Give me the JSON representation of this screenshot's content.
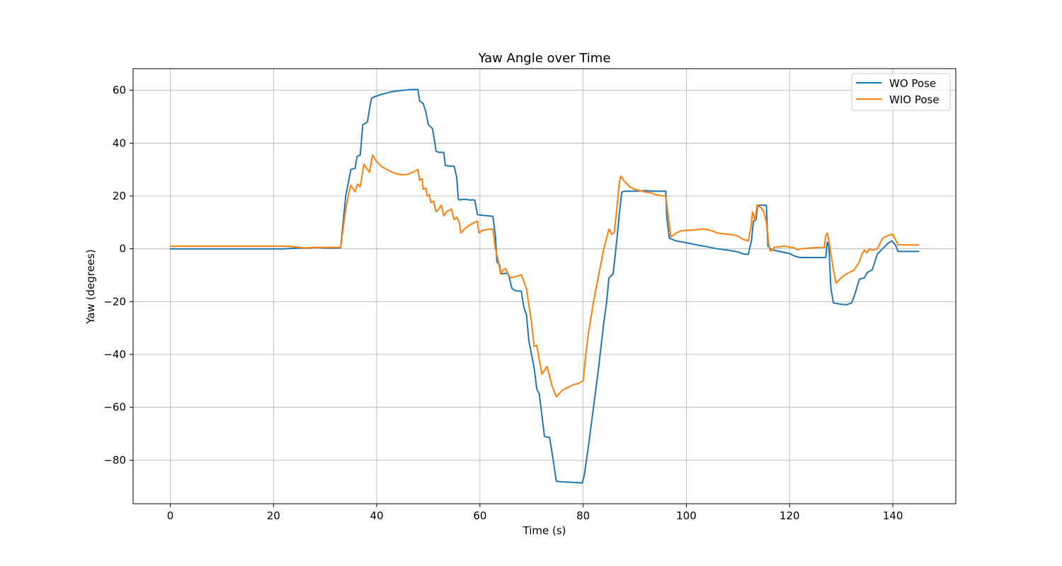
{
  "chart_data": {
    "type": "line",
    "title": "Yaw Angle over Time",
    "xlabel": "Time (s)",
    "ylabel": "Yaw (degrees)",
    "xlim": [
      -7.2,
      152.2
    ],
    "ylim": [
      -96.5,
      68.2
    ],
    "xticks": [
      0,
      20,
      40,
      60,
      80,
      100,
      120,
      140
    ],
    "xtick_labels": [
      "0",
      "20",
      "40",
      "60",
      "80",
      "100",
      "120",
      "140"
    ],
    "yticks": [
      -80,
      -60,
      -40,
      -20,
      0,
      20,
      40,
      60
    ],
    "ytick_labels": [
      "−80",
      "−60",
      "−40",
      "−20",
      "0",
      "20",
      "40",
      "60"
    ],
    "grid": true,
    "legend_position": "top-right",
    "series": [
      {
        "name": "WO Pose",
        "color": "#1f77b4",
        "points": [
          [
            0,
            0
          ],
          [
            10,
            0
          ],
          [
            22,
            0
          ],
          [
            25,
            0.3
          ],
          [
            27,
            0.3
          ],
          [
            28,
            0.5
          ],
          [
            30,
            0.3
          ],
          [
            33,
            0.3
          ],
          [
            34,
            20
          ],
          [
            35,
            30
          ],
          [
            35.8,
            30.5
          ],
          [
            36.2,
            35
          ],
          [
            36.8,
            35.5
          ],
          [
            37.3,
            47
          ],
          [
            38.2,
            48
          ],
          [
            38.6,
            53
          ],
          [
            39,
            57
          ],
          [
            39.5,
            57.5
          ],
          [
            41,
            58.5
          ],
          [
            43,
            59.5
          ],
          [
            45,
            60
          ],
          [
            47,
            60.3
          ],
          [
            48,
            60.3
          ],
          [
            48.3,
            56
          ],
          [
            49,
            55
          ],
          [
            49.5,
            52
          ],
          [
            50,
            47
          ],
          [
            50.8,
            45.5
          ],
          [
            51.2,
            41
          ],
          [
            51.5,
            37
          ],
          [
            52,
            36.5
          ],
          [
            53,
            36.5
          ],
          [
            53.3,
            31.5
          ],
          [
            54,
            31.3
          ],
          [
            55,
            31.3
          ],
          [
            55.5,
            27
          ],
          [
            55.8,
            19
          ],
          [
            56,
            18.5
          ],
          [
            57,
            18.8
          ],
          [
            58,
            18.5
          ],
          [
            59,
            18.5
          ],
          [
            59.5,
            13
          ],
          [
            60,
            12.8
          ],
          [
            61.5,
            12.5
          ],
          [
            62.5,
            12.3
          ],
          [
            63,
            5
          ],
          [
            63.3,
            -5
          ],
          [
            63.8,
            -6
          ],
          [
            64,
            -9.5
          ],
          [
            65,
            -9.3
          ],
          [
            65.5,
            -9.5
          ],
          [
            66.2,
            -15
          ],
          [
            67,
            -16
          ],
          [
            68,
            -16
          ],
          [
            68.5,
            -22
          ],
          [
            69,
            -25
          ],
          [
            69.5,
            -35
          ],
          [
            70.5,
            -45
          ],
          [
            71,
            -53
          ],
          [
            71.5,
            -55
          ],
          [
            72,
            -63
          ],
          [
            72.5,
            -71
          ],
          [
            73.5,
            -71.5
          ],
          [
            74.2,
            -80
          ],
          [
            74.8,
            -88
          ],
          [
            76,
            -88.2
          ],
          [
            78,
            -88.4
          ],
          [
            79,
            -88.5
          ],
          [
            79.8,
            -88.7
          ],
          [
            80.2,
            -86
          ],
          [
            81,
            -75
          ],
          [
            82,
            -60
          ],
          [
            83,
            -45
          ],
          [
            84,
            -28
          ],
          [
            84.5,
            -21
          ],
          [
            85,
            -11
          ],
          [
            85.8,
            -9.5
          ],
          [
            86.5,
            3
          ],
          [
            87,
            13
          ],
          [
            87.5,
            21.5
          ],
          [
            88,
            21.8
          ],
          [
            90,
            21.8
          ],
          [
            92,
            22
          ],
          [
            94,
            21.8
          ],
          [
            96,
            21.8
          ],
          [
            96.2,
            12
          ],
          [
            96.7,
            4
          ],
          [
            98,
            3
          ],
          [
            100,
            2.3
          ],
          [
            102,
            1.5
          ],
          [
            104,
            0.8
          ],
          [
            106,
            0
          ],
          [
            108,
            -0.5
          ],
          [
            110,
            -1.2
          ],
          [
            111,
            -2
          ],
          [
            112,
            -2.1
          ],
          [
            112.6,
            3
          ],
          [
            113,
            10.5
          ],
          [
            113.5,
            11
          ],
          [
            113.8,
            16.5
          ],
          [
            115,
            16.5
          ],
          [
            115.5,
            16.5
          ],
          [
            115.8,
            1
          ],
          [
            116.5,
            -0.3
          ],
          [
            118,
            -1
          ],
          [
            120,
            -1.8
          ],
          [
            121,
            -2.8
          ],
          [
            122,
            -3.3
          ],
          [
            124,
            -3.3
          ],
          [
            127,
            -3.3
          ],
          [
            127.3,
            2.5
          ],
          [
            127.6,
            1
          ],
          [
            128,
            -15
          ],
          [
            128.5,
            -20.5
          ],
          [
            130,
            -21
          ],
          [
            131,
            -21.2
          ],
          [
            132,
            -20.5
          ],
          [
            132.5,
            -18
          ],
          [
            133,
            -15
          ],
          [
            133.5,
            -11.5
          ],
          [
            134.5,
            -11
          ],
          [
            135,
            -9
          ],
          [
            136,
            -8
          ],
          [
            136.5,
            -5
          ],
          [
            137,
            -2
          ],
          [
            138,
            0
          ],
          [
            139,
            2
          ],
          [
            139.8,
            3
          ],
          [
            140.5,
            1.5
          ],
          [
            141,
            -1
          ],
          [
            143,
            -1
          ],
          [
            145,
            -1
          ]
        ]
      },
      {
        "name": "WIO Pose",
        "color": "#ff7f0e",
        "points": [
          [
            0,
            1
          ],
          [
            10,
            1
          ],
          [
            20,
            1
          ],
          [
            22,
            1
          ],
          [
            24,
            0.8
          ],
          [
            26,
            0.3
          ],
          [
            28,
            0.5
          ],
          [
            30,
            0.5
          ],
          [
            33,
            0.5
          ],
          [
            34,
            15
          ],
          [
            34.7,
            22
          ],
          [
            35,
            24
          ],
          [
            35.8,
            21.5
          ],
          [
            36.3,
            24.5
          ],
          [
            36.8,
            23.5
          ],
          [
            37.5,
            32
          ],
          [
            38,
            30.5
          ],
          [
            38.6,
            29
          ],
          [
            39.2,
            35.5
          ],
          [
            40,
            33
          ],
          [
            41,
            31
          ],
          [
            42,
            30
          ],
          [
            43,
            29
          ],
          [
            44,
            28.3
          ],
          [
            45,
            28
          ],
          [
            46,
            28.2
          ],
          [
            47,
            29
          ],
          [
            48,
            30
          ],
          [
            48.3,
            26
          ],
          [
            48.8,
            26.5
          ],
          [
            49,
            22.5
          ],
          [
            49.5,
            23
          ],
          [
            49.8,
            20
          ],
          [
            50.2,
            20.5
          ],
          [
            50.5,
            17.5
          ],
          [
            51,
            18
          ],
          [
            51.5,
            14
          ],
          [
            52,
            15
          ],
          [
            52.5,
            16.5
          ],
          [
            53,
            12.5
          ],
          [
            53.5,
            14
          ],
          [
            54.5,
            15
          ],
          [
            55,
            11
          ],
          [
            55.5,
            12
          ],
          [
            56,
            10
          ],
          [
            56.3,
            6
          ],
          [
            57,
            7.5
          ],
          [
            58,
            9
          ],
          [
            59,
            10
          ],
          [
            59.5,
            10.5
          ],
          [
            59.8,
            6
          ],
          [
            60.5,
            7
          ],
          [
            62,
            7.5
          ],
          [
            62.5,
            7.5
          ],
          [
            63,
            0
          ],
          [
            63.5,
            -4
          ],
          [
            64,
            -9.5
          ],
          [
            64.5,
            -8
          ],
          [
            65,
            -7.5
          ],
          [
            65.5,
            -10
          ],
          [
            66,
            -11
          ],
          [
            67,
            -10.5
          ],
          [
            68,
            -9.8
          ],
          [
            69,
            -15
          ],
          [
            70,
            -28
          ],
          [
            70.5,
            -37
          ],
          [
            71,
            -36.5
          ],
          [
            71.5,
            -42
          ],
          [
            72,
            -47.5
          ],
          [
            72.5,
            -46
          ],
          [
            73,
            -44.5
          ],
          [
            74,
            -52
          ],
          [
            74.8,
            -56
          ],
          [
            75.5,
            -54.5
          ],
          [
            76,
            -53.5
          ],
          [
            77,
            -52.5
          ],
          [
            78,
            -51.5
          ],
          [
            79,
            -51
          ],
          [
            80,
            -50
          ],
          [
            80.5,
            -40
          ],
          [
            81,
            -32
          ],
          [
            82,
            -20
          ],
          [
            83,
            -10
          ],
          [
            84,
            0
          ],
          [
            85,
            7.5
          ],
          [
            85.5,
            5.5
          ],
          [
            86,
            6
          ],
          [
            86.5,
            15
          ],
          [
            87,
            25
          ],
          [
            87.3,
            27.5
          ],
          [
            88,
            25.5
          ],
          [
            89,
            23.5
          ],
          [
            90,
            22.5
          ],
          [
            91,
            22
          ],
          [
            92,
            21.5
          ],
          [
            93,
            21.3
          ],
          [
            94,
            20.5
          ],
          [
            96,
            19.8
          ],
          [
            96.5,
            12
          ],
          [
            97,
            4.5
          ],
          [
            98,
            6
          ],
          [
            99,
            6.8
          ],
          [
            100,
            7
          ],
          [
            102,
            7.2
          ],
          [
            103,
            7.5
          ],
          [
            104,
            7.3
          ],
          [
            105,
            6.8
          ],
          [
            106,
            6
          ],
          [
            108,
            5.5
          ],
          [
            109,
            5.3
          ],
          [
            110,
            4.8
          ],
          [
            111,
            3.5
          ],
          [
            112,
            3
          ],
          [
            112.5,
            8
          ],
          [
            112.8,
            14
          ],
          [
            113,
            13
          ],
          [
            113.3,
            10.5
          ],
          [
            113.7,
            16.5
          ],
          [
            114.5,
            15.5
          ],
          [
            115,
            14
          ],
          [
            115.5,
            10
          ],
          [
            116,
            0.8
          ],
          [
            116.3,
            -1
          ],
          [
            117,
            0.5
          ],
          [
            118,
            0.8
          ],
          [
            119,
            1
          ],
          [
            120,
            0.6
          ],
          [
            120.5,
            0.5
          ],
          [
            121,
            0.3
          ],
          [
            121.5,
            -0.4
          ],
          [
            122,
            0
          ],
          [
            124,
            0.3
          ],
          [
            126,
            0.5
          ],
          [
            126.7,
            0.5
          ],
          [
            127,
            5
          ],
          [
            127.3,
            6
          ],
          [
            127.6,
            3
          ],
          [
            128.5,
            -8
          ],
          [
            129,
            -13
          ],
          [
            130,
            -11
          ],
          [
            131,
            -9.5
          ],
          [
            132,
            -8.5
          ],
          [
            132.5,
            -8
          ],
          [
            133,
            -6.5
          ],
          [
            133.5,
            -5
          ],
          [
            134,
            -2
          ],
          [
            134.5,
            -0.5
          ],
          [
            135,
            -1.5
          ],
          [
            135.5,
            0
          ],
          [
            136,
            -0.5
          ],
          [
            137,
            0
          ],
          [
            137.5,
            2
          ],
          [
            138,
            4
          ],
          [
            139,
            5
          ],
          [
            140,
            5.5
          ],
          [
            140.5,
            3.5
          ],
          [
            141,
            1.5
          ],
          [
            143,
            1.5
          ],
          [
            145,
            1.5
          ]
        ]
      }
    ]
  }
}
